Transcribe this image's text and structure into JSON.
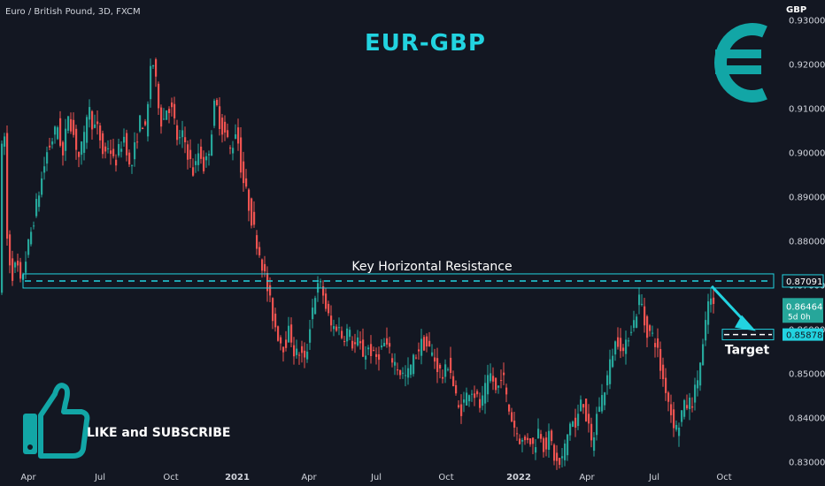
{
  "header": {
    "symbol": "Euro / British Pound, 3D, FXCM",
    "title": "EUR-GBP",
    "currency_label": "GBP"
  },
  "overlay": {
    "like_text": "LIKE and SUBSCRIBE",
    "euro_icon": "euro-sign-icon",
    "thumb_icon": "thumbs-up-icon"
  },
  "colors": {
    "background": "#131722",
    "up": "#26a69a",
    "down": "#ef5350",
    "accent": "#22d3e0",
    "current_price_bg": "#26a69a"
  },
  "chart_data": {
    "type": "candlestick",
    "title": "EUR-GBP",
    "xlabel": "",
    "ylabel": "",
    "ylim": [
      0.8245,
      0.9345
    ],
    "y_ticks": [
      "0.93000",
      "0.92000",
      "0.91000",
      "0.90000",
      "0.89000",
      "0.88000",
      "0.87000",
      "0.86000",
      "0.85000",
      "0.84000",
      "0.83000"
    ],
    "x_ticks": [
      "Apr",
      "Jul",
      "Oct",
      "2021",
      "Apr",
      "Jul",
      "Oct",
      "2022",
      "Apr",
      "Jul",
      "Oct"
    ],
    "grid": false,
    "price_path": [
      [
        0,
        0.87
      ],
      [
        2,
        0.876
      ],
      [
        4,
        0.925
      ],
      [
        8,
        0.882
      ],
      [
        14,
        0.872
      ],
      [
        20,
        0.875
      ],
      [
        24,
        0.87
      ],
      [
        30,
        0.876
      ],
      [
        36,
        0.882
      ],
      [
        42,
        0.888
      ],
      [
        48,
        0.894
      ],
      [
        54,
        0.9
      ],
      [
        60,
        0.903
      ],
      [
        66,
        0.906
      ],
      [
        72,
        0.899
      ],
      [
        78,
        0.909
      ],
      [
        84,
        0.904
      ],
      [
        90,
        0.899
      ],
      [
        96,
        0.903
      ],
      [
        100,
        0.911
      ],
      [
        106,
        0.906
      ],
      [
        112,
        0.905
      ],
      [
        118,
        0.899
      ],
      [
        124,
        0.902
      ],
      [
        130,
        0.897
      ],
      [
        136,
        0.901
      ],
      [
        142,
        0.904
      ],
      [
        148,
        0.895
      ],
      [
        154,
        0.902
      ],
      [
        160,
        0.908
      ],
      [
        166,
        0.904
      ],
      [
        172,
        0.923
      ],
      [
        178,
        0.914
      ],
      [
        184,
        0.906
      ],
      [
        190,
        0.911
      ],
      [
        196,
        0.909
      ],
      [
        202,
        0.902
      ],
      [
        208,
        0.904
      ],
      [
        214,
        0.899
      ],
      [
        220,
        0.895
      ],
      [
        226,
        0.901
      ],
      [
        232,
        0.896
      ],
      [
        238,
        0.902
      ],
      [
        244,
        0.912
      ],
      [
        250,
        0.906
      ],
      [
        256,
        0.904
      ],
      [
        262,
        0.9
      ],
      [
        268,
        0.906
      ],
      [
        274,
        0.895
      ],
      [
        280,
        0.89
      ],
      [
        286,
        0.884
      ],
      [
        292,
        0.879
      ],
      [
        298,
        0.874
      ],
      [
        304,
        0.868
      ],
      [
        310,
        0.862
      ],
      [
        316,
        0.858
      ],
      [
        322,
        0.856
      ],
      [
        328,
        0.86
      ],
      [
        334,
        0.854
      ],
      [
        340,
        0.855
      ],
      [
        346,
        0.852
      ],
      [
        352,
        0.863
      ],
      [
        358,
        0.869
      ],
      [
        364,
        0.87
      ],
      [
        370,
        0.864
      ],
      [
        376,
        0.86
      ],
      [
        382,
        0.861
      ],
      [
        388,
        0.858
      ],
      [
        394,
        0.86
      ],
      [
        400,
        0.856
      ],
      [
        406,
        0.857
      ],
      [
        412,
        0.854
      ],
      [
        418,
        0.856
      ],
      [
        424,
        0.853
      ],
      [
        430,
        0.855
      ],
      [
        436,
        0.857
      ],
      [
        442,
        0.854
      ],
      [
        448,
        0.852
      ],
      [
        454,
        0.85
      ],
      [
        460,
        0.849
      ],
      [
        466,
        0.852
      ],
      [
        472,
        0.855
      ],
      [
        478,
        0.857
      ],
      [
        484,
        0.856
      ],
      [
        490,
        0.854
      ],
      [
        496,
        0.851
      ],
      [
        502,
        0.849
      ],
      [
        508,
        0.853
      ],
      [
        514,
        0.846
      ],
      [
        520,
        0.841
      ],
      [
        526,
        0.844
      ],
      [
        532,
        0.847
      ],
      [
        538,
        0.845
      ],
      [
        544,
        0.842
      ],
      [
        550,
        0.847
      ],
      [
        556,
        0.85
      ],
      [
        562,
        0.845
      ],
      [
        568,
        0.851
      ],
      [
        574,
        0.843
      ],
      [
        580,
        0.839
      ],
      [
        586,
        0.836
      ],
      [
        592,
        0.834
      ],
      [
        598,
        0.836
      ],
      [
        604,
        0.833
      ],
      [
        610,
        0.838
      ],
      [
        616,
        0.833
      ],
      [
        622,
        0.836
      ],
      [
        628,
        0.83
      ],
      [
        634,
        0.829
      ],
      [
        640,
        0.834
      ],
      [
        646,
        0.84
      ],
      [
        652,
        0.837
      ],
      [
        658,
        0.846
      ],
      [
        664,
        0.839
      ],
      [
        670,
        0.833
      ],
      [
        676,
        0.842
      ],
      [
        682,
        0.845
      ],
      [
        688,
        0.85
      ],
      [
        694,
        0.856
      ],
      [
        700,
        0.858
      ],
      [
        706,
        0.854
      ],
      [
        712,
        0.86
      ],
      [
        718,
        0.862
      ],
      [
        724,
        0.868
      ],
      [
        730,
        0.86
      ],
      [
        736,
        0.859
      ],
      [
        742,
        0.857
      ],
      [
        748,
        0.85
      ],
      [
        754,
        0.846
      ],
      [
        760,
        0.84
      ],
      [
        766,
        0.837
      ],
      [
        772,
        0.842
      ],
      [
        778,
        0.843
      ],
      [
        784,
        0.844
      ],
      [
        790,
        0.85
      ],
      [
        796,
        0.857
      ],
      [
        802,
        0.868
      ],
      [
        806,
        0.8646
      ]
    ],
    "x_range": [
      0,
      806
    ],
    "annotations": {
      "resistance_label": "Key Horizontal Resistance",
      "resistance_level": 0.87091,
      "resistance_price_label": "0.87091",
      "target_label": "Target",
      "target_level": 0.85878,
      "target_price_label": "0.85878",
      "current_price_label": "0.86464",
      "current_price": 0.86464,
      "countdown_label": "5d 0h"
    }
  }
}
